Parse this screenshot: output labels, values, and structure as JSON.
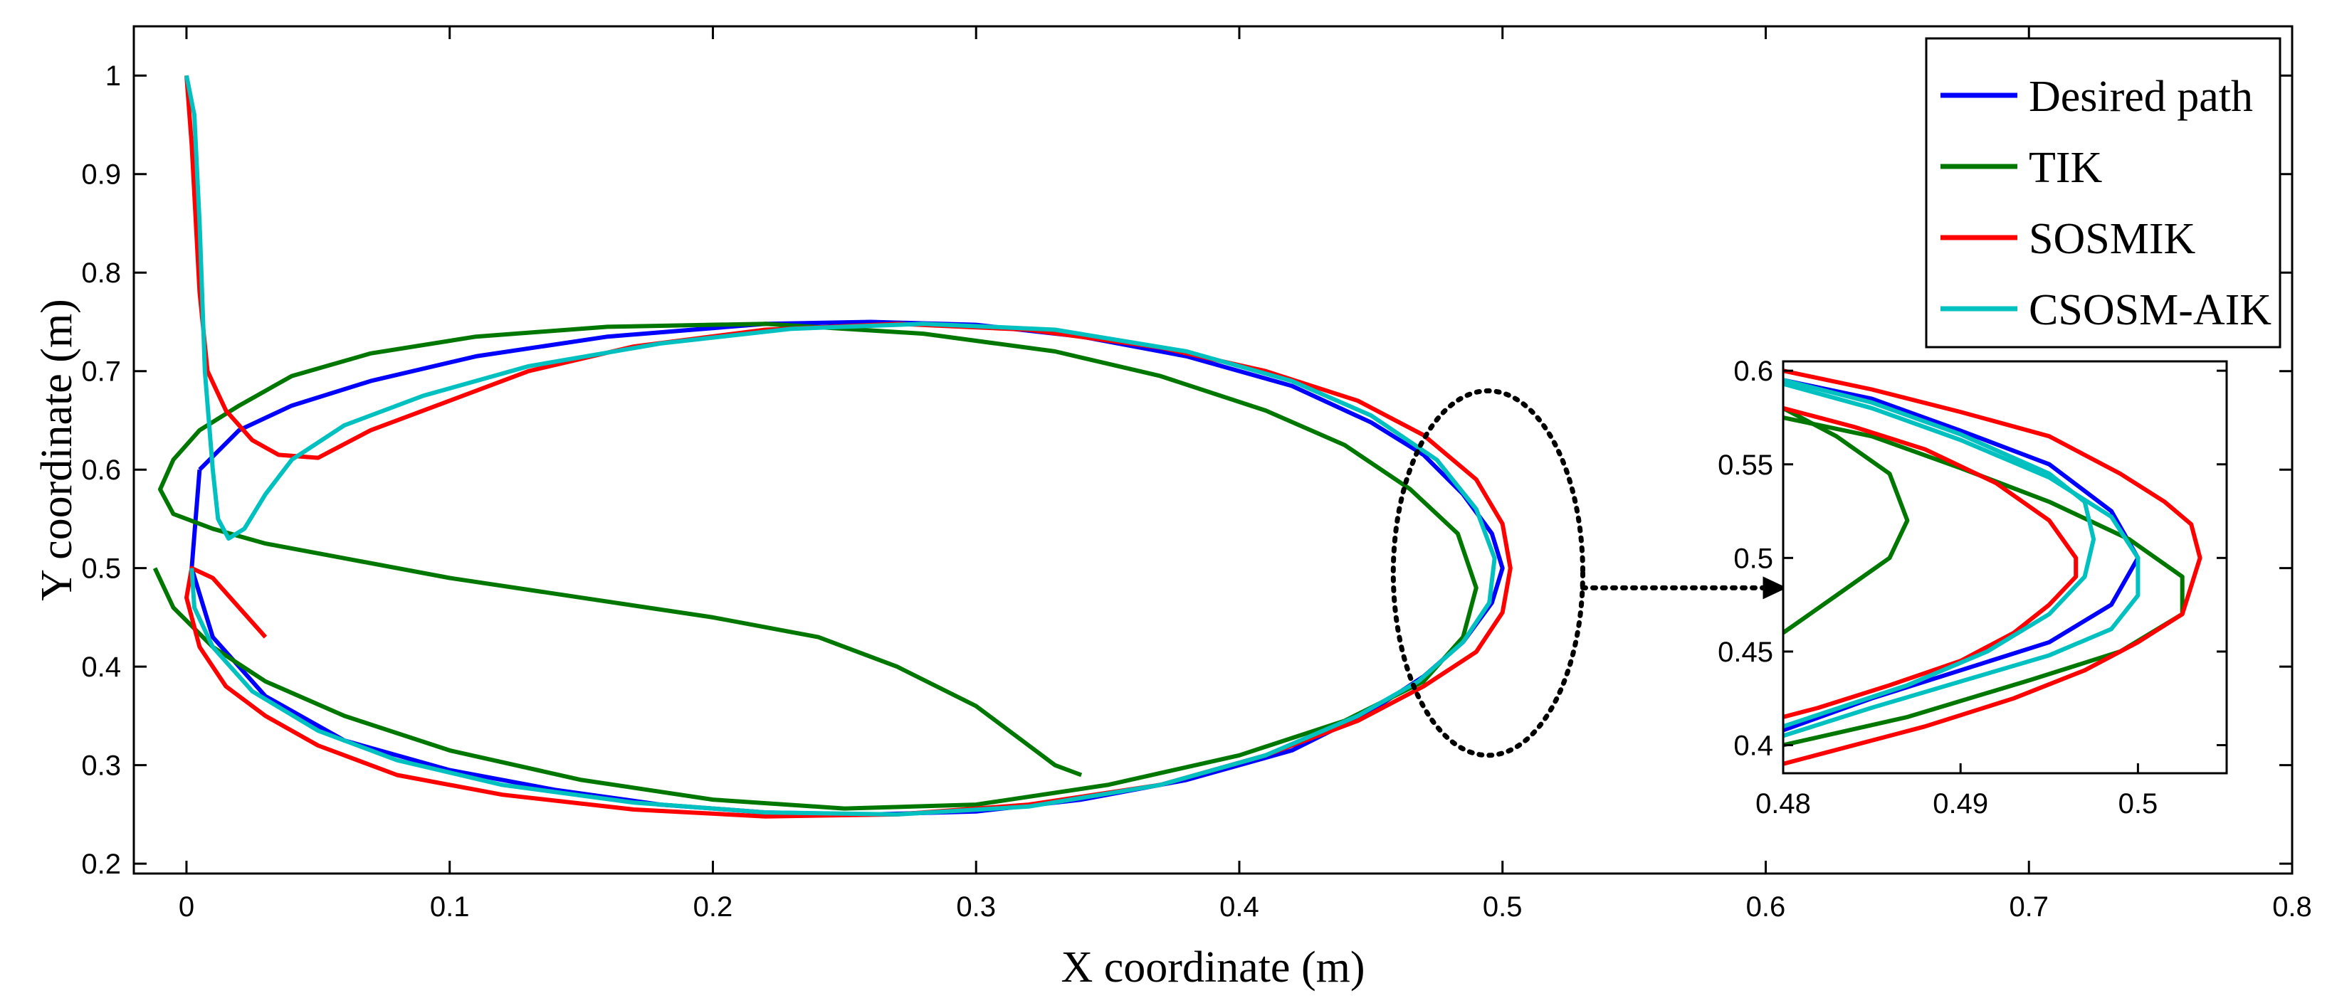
{
  "chart_data": [
    {
      "type": "line",
      "xlabel": "X coordinate (m)",
      "ylabel": "Y coordinate (m)",
      "xlim": [
        -0.02,
        0.8
      ],
      "ylim": [
        0.19,
        1.05
      ],
      "xticks": [
        0,
        0.1,
        0.2,
        0.3,
        0.4,
        0.5,
        0.6,
        0.7,
        0.8
      ],
      "yticks": [
        0.2,
        0.3,
        0.4,
        0.5,
        0.6,
        0.7,
        0.8,
        0.9,
        1
      ],
      "grid": false,
      "legend_position": "top-right",
      "series": [
        {
          "name": "Desired path",
          "color": "#0000ff",
          "points": [
            [
              0.005,
              0.6
            ],
            [
              0.02,
              0.64
            ],
            [
              0.04,
              0.665
            ],
            [
              0.07,
              0.69
            ],
            [
              0.11,
              0.715
            ],
            [
              0.16,
              0.735
            ],
            [
              0.22,
              0.748
            ],
            [
              0.26,
              0.75
            ],
            [
              0.3,
              0.747
            ],
            [
              0.34,
              0.735
            ],
            [
              0.38,
              0.715
            ],
            [
              0.42,
              0.685
            ],
            [
              0.45,
              0.648
            ],
            [
              0.47,
              0.615
            ],
            [
              0.485,
              0.575
            ],
            [
              0.496,
              0.535
            ],
            [
              0.5,
              0.5
            ],
            [
              0.496,
              0.465
            ],
            [
              0.485,
              0.425
            ],
            [
              0.47,
              0.39
            ],
            [
              0.45,
              0.355
            ],
            [
              0.42,
              0.315
            ],
            [
              0.38,
              0.285
            ],
            [
              0.34,
              0.265
            ],
            [
              0.3,
              0.253
            ],
            [
              0.26,
              0.25
            ],
            [
              0.22,
              0.252
            ],
            [
              0.18,
              0.26
            ],
            [
              0.14,
              0.275
            ],
            [
              0.1,
              0.295
            ],
            [
              0.06,
              0.325
            ],
            [
              0.03,
              0.37
            ],
            [
              0.01,
              0.43
            ],
            [
              0.002,
              0.5
            ],
            [
              0.005,
              0.6
            ]
          ]
        },
        {
          "name": "TIK",
          "color": "#007800",
          "points": [
            [
              -0.012,
              0.5
            ],
            [
              -0.005,
              0.46
            ],
            [
              0.01,
              0.42
            ],
            [
              0.03,
              0.385
            ],
            [
              0.06,
              0.35
            ],
            [
              0.1,
              0.315
            ],
            [
              0.15,
              0.285
            ],
            [
              0.2,
              0.265
            ],
            [
              0.25,
              0.256
            ],
            [
              0.3,
              0.26
            ],
            [
              0.35,
              0.28
            ],
            [
              0.4,
              0.31
            ],
            [
              0.44,
              0.345
            ],
            [
              0.47,
              0.385
            ],
            [
              0.485,
              0.43
            ],
            [
              0.49,
              0.48
            ],
            [
              0.483,
              0.535
            ],
            [
              0.465,
              0.58
            ],
            [
              0.44,
              0.625
            ],
            [
              0.41,
              0.66
            ],
            [
              0.37,
              0.695
            ],
            [
              0.33,
              0.72
            ],
            [
              0.28,
              0.738
            ],
            [
              0.22,
              0.748
            ],
            [
              0.16,
              0.745
            ],
            [
              0.11,
              0.735
            ],
            [
              0.07,
              0.718
            ],
            [
              0.04,
              0.695
            ],
            [
              0.02,
              0.665
            ],
            [
              0.005,
              0.64
            ],
            [
              -0.005,
              0.61
            ],
            [
              -0.01,
              0.58
            ],
            [
              -0.005,
              0.555
            ],
            [
              0.01,
              0.54
            ],
            [
              0.03,
              0.525
            ],
            [
              0.06,
              0.51
            ],
            [
              0.1,
              0.49
            ],
            [
              0.15,
              0.47
            ],
            [
              0.2,
              0.45
            ],
            [
              0.24,
              0.43
            ],
            [
              0.27,
              0.4
            ],
            [
              0.3,
              0.36
            ],
            [
              0.32,
              0.32
            ],
            [
              0.33,
              0.3
            ],
            [
              0.34,
              0.29
            ]
          ]
        },
        {
          "name": "SOSMIK",
          "color": "#ff0000",
          "points": [
            [
              0,
              1.0
            ],
            [
              0.002,
              0.93
            ],
            [
              0.005,
              0.78
            ],
            [
              0.008,
              0.7
            ],
            [
              0.015,
              0.66
            ],
            [
              0.025,
              0.63
            ],
            [
              0.035,
              0.615
            ],
            [
              0.05,
              0.612
            ],
            [
              0.07,
              0.64
            ],
            [
              0.1,
              0.67
            ],
            [
              0.13,
              0.7
            ],
            [
              0.17,
              0.725
            ],
            [
              0.22,
              0.742
            ],
            [
              0.27,
              0.748
            ],
            [
              0.32,
              0.742
            ],
            [
              0.37,
              0.724
            ],
            [
              0.41,
              0.7
            ],
            [
              0.445,
              0.67
            ],
            [
              0.47,
              0.635
            ],
            [
              0.49,
              0.59
            ],
            [
              0.5,
              0.545
            ],
            [
              0.503,
              0.5
            ],
            [
              0.5,
              0.455
            ],
            [
              0.49,
              0.415
            ],
            [
              0.47,
              0.38
            ],
            [
              0.445,
              0.345
            ],
            [
              0.41,
              0.31
            ],
            [
              0.37,
              0.28
            ],
            [
              0.32,
              0.26
            ],
            [
              0.27,
              0.25
            ],
            [
              0.22,
              0.248
            ],
            [
              0.17,
              0.255
            ],
            [
              0.12,
              0.27
            ],
            [
              0.08,
              0.29
            ],
            [
              0.05,
              0.32
            ],
            [
              0.03,
              0.35
            ],
            [
              0.015,
              0.38
            ],
            [
              0.005,
              0.42
            ],
            [
              0,
              0.47
            ],
            [
              0.002,
              0.5
            ],
            [
              0.01,
              0.49
            ],
            [
              0.02,
              0.46
            ],
            [
              0.03,
              0.43
            ]
          ]
        },
        {
          "name": "CSOSM-AIK",
          "color": "#00c0c0",
          "points": [
            [
              0,
              1.0
            ],
            [
              0.003,
              0.96
            ],
            [
              0.005,
              0.85
            ],
            [
              0.007,
              0.7
            ],
            [
              0.01,
              0.6
            ],
            [
              0.012,
              0.55
            ],
            [
              0.016,
              0.53
            ],
            [
              0.022,
              0.54
            ],
            [
              0.03,
              0.575
            ],
            [
              0.04,
              0.61
            ],
            [
              0.06,
              0.645
            ],
            [
              0.09,
              0.675
            ],
            [
              0.13,
              0.705
            ],
            [
              0.18,
              0.728
            ],
            [
              0.23,
              0.743
            ],
            [
              0.28,
              0.748
            ],
            [
              0.33,
              0.742
            ],
            [
              0.38,
              0.72
            ],
            [
              0.42,
              0.69
            ],
            [
              0.45,
              0.655
            ],
            [
              0.475,
              0.61
            ],
            [
              0.49,
              0.56
            ],
            [
              0.497,
              0.51
            ],
            [
              0.495,
              0.465
            ],
            [
              0.485,
              0.425
            ],
            [
              0.468,
              0.385
            ],
            [
              0.445,
              0.35
            ],
            [
              0.41,
              0.31
            ],
            [
              0.37,
              0.28
            ],
            [
              0.32,
              0.258
            ],
            [
              0.27,
              0.25
            ],
            [
              0.22,
              0.252
            ],
            [
              0.17,
              0.262
            ],
            [
              0.12,
              0.28
            ],
            [
              0.08,
              0.305
            ],
            [
              0.05,
              0.335
            ],
            [
              0.025,
              0.375
            ],
            [
              0.01,
              0.42
            ],
            [
              0.003,
              0.46
            ],
            [
              0.002,
              0.5
            ]
          ]
        }
      ],
      "annotation": "zoom-ellipse-arrow"
    },
    {
      "type": "line",
      "title": "",
      "xlim": [
        0.48,
        0.505
      ],
      "ylim": [
        0.385,
        0.605
      ],
      "xticks": [
        0.48,
        0.49,
        0.5
      ],
      "xtick_labels": [
        "0.48",
        "0.49",
        "0.5"
      ],
      "yticks": [
        0.4,
        0.45,
        0.5,
        0.55,
        0.6
      ],
      "ytick_labels": [
        "0.4",
        "0.45",
        "0.5",
        "0.55",
        "0.6"
      ],
      "series": [
        {
          "name": "Desired path",
          "color": "#0000ff",
          "points": [
            [
              0.48,
              0.595
            ],
            [
              0.485,
              0.585
            ],
            [
              0.49,
              0.568
            ],
            [
              0.495,
              0.55
            ],
            [
              0.4985,
              0.525
            ],
            [
              0.5,
              0.5
            ],
            [
              0.4985,
              0.475
            ],
            [
              0.495,
              0.455
            ],
            [
              0.49,
              0.44
            ],
            [
              0.485,
              0.425
            ],
            [
              0.48,
              0.408
            ]
          ]
        },
        {
          "name": "TIK",
          "color": "#007800",
          "points": [
            [
              0.48,
              0.58
            ],
            [
              0.483,
              0.565
            ],
            [
              0.486,
              0.545
            ],
            [
              0.487,
              0.52
            ],
            [
              0.486,
              0.5
            ],
            [
              0.483,
              0.48
            ],
            [
              0.48,
              0.46
            ]
          ]
        },
        {
          "name": "TIK",
          "color": "#007800",
          "points": [
            [
              0.48,
              0.575
            ],
            [
              0.485,
              0.565
            ],
            [
              0.49,
              0.548
            ],
            [
              0.495,
              0.53
            ],
            [
              0.4995,
              0.51
            ],
            [
              0.5025,
              0.49
            ],
            [
              0.5025,
              0.47
            ],
            [
              0.499,
              0.45
            ],
            [
              0.494,
              0.435
            ],
            [
              0.487,
              0.415
            ],
            [
              0.48,
              0.4
            ]
          ]
        },
        {
          "name": "SOSMIK",
          "color": "#ff0000",
          "points": [
            [
              0.48,
              0.6
            ],
            [
              0.485,
              0.59
            ],
            [
              0.49,
              0.578
            ],
            [
              0.495,
              0.565
            ],
            [
              0.499,
              0.545
            ],
            [
              0.5015,
              0.53
            ],
            [
              0.503,
              0.518
            ],
            [
              0.5035,
              0.5
            ],
            [
              0.503,
              0.485
            ],
            [
              0.5025,
              0.47
            ],
            [
              0.5,
              0.455
            ],
            [
              0.497,
              0.44
            ],
            [
              0.493,
              0.425
            ],
            [
              0.488,
              0.41
            ],
            [
              0.482,
              0.395
            ],
            [
              0.48,
              0.39
            ]
          ]
        },
        {
          "name": "SOSMIK",
          "color": "#ff0000",
          "points": [
            [
              0.48,
              0.58
            ],
            [
              0.484,
              0.57
            ],
            [
              0.488,
              0.558
            ],
            [
              0.492,
              0.54
            ],
            [
              0.495,
              0.52
            ],
            [
              0.4965,
              0.5
            ],
            [
              0.4965,
              0.49
            ],
            [
              0.495,
              0.475
            ],
            [
              0.493,
              0.46
            ],
            [
              0.49,
              0.445
            ],
            [
              0.486,
              0.432
            ],
            [
              0.482,
              0.42
            ],
            [
              0.48,
              0.415
            ]
          ]
        },
        {
          "name": "CSOSM-AIK",
          "color": "#00c0c0",
          "points": [
            [
              0.48,
              0.593
            ],
            [
              0.485,
              0.58
            ],
            [
              0.49,
              0.563
            ],
            [
              0.495,
              0.543
            ],
            [
              0.4985,
              0.522
            ],
            [
              0.5,
              0.5
            ],
            [
              0.5,
              0.48
            ],
            [
              0.4985,
              0.462
            ],
            [
              0.495,
              0.448
            ],
            [
              0.49,
              0.434
            ],
            [
              0.485,
              0.42
            ],
            [
              0.48,
              0.405
            ]
          ]
        },
        {
          "name": "CSOSM-AIK",
          "color": "#00c0c0",
          "points": [
            [
              0.48,
              0.595
            ],
            [
              0.485,
              0.583
            ],
            [
              0.49,
              0.566
            ],
            [
              0.495,
              0.545
            ],
            [
              0.497,
              0.53
            ],
            [
              0.4975,
              0.51
            ],
            [
              0.497,
              0.49
            ],
            [
              0.495,
              0.47
            ],
            [
              0.4915,
              0.45
            ],
            [
              0.487,
              0.432
            ],
            [
              0.48,
              0.41
            ]
          ]
        }
      ]
    }
  ]
}
